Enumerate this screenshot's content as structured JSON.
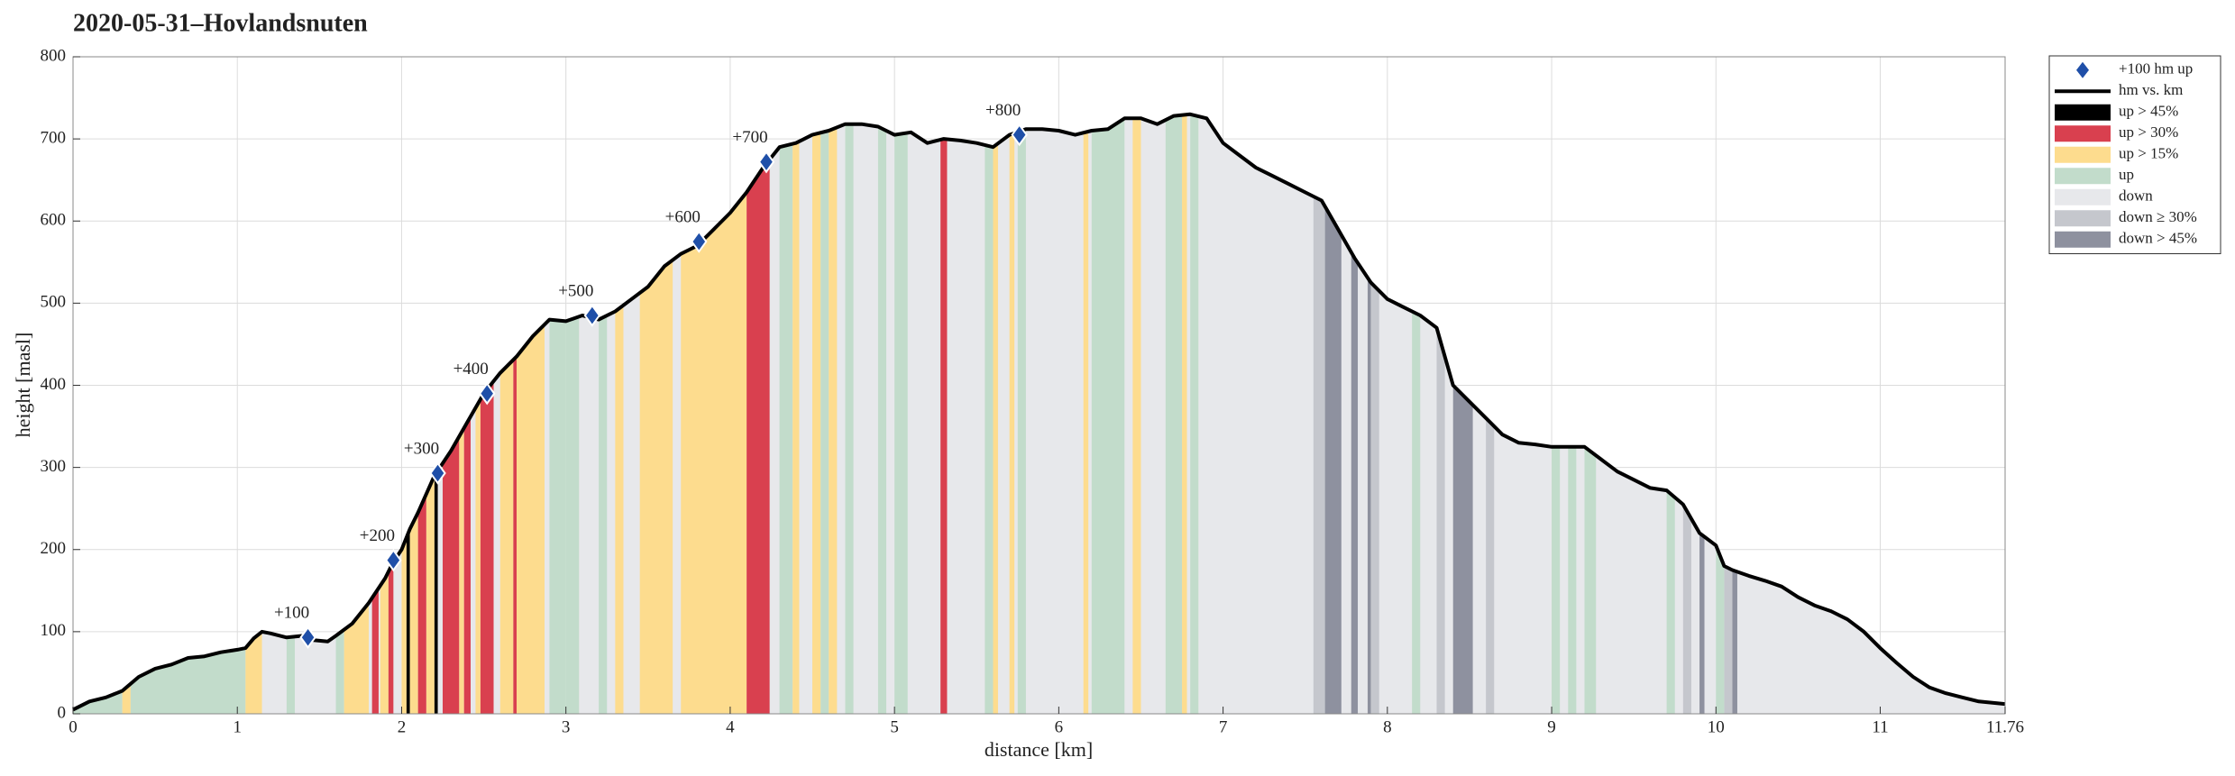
{
  "chart_data": {
    "type": "area",
    "title": "2020-05-31–Hovlandsnuten",
    "xlabel": "distance [km]",
    "ylabel": "height [masl]",
    "xlim": [
      0,
      11.76
    ],
    "ylim": [
      0,
      800
    ],
    "xticks": [
      0,
      1,
      2,
      3,
      4,
      5,
      6,
      7,
      8,
      9,
      10,
      11,
      11.76
    ],
    "yticks": [
      0,
      100,
      200,
      300,
      400,
      500,
      600,
      700,
      800
    ],
    "grid": true,
    "legend": "outside-right",
    "x": [
      0,
      0.1,
      0.2,
      0.3,
      0.4,
      0.5,
      0.6,
      0.7,
      0.8,
      0.9,
      1.0,
      1.05,
      1.1,
      1.15,
      1.2,
      1.3,
      1.4,
      1.45,
      1.55,
      1.6,
      1.7,
      1.8,
      1.9,
      1.95,
      2.0,
      2.05,
      2.1,
      2.2,
      2.3,
      2.4,
      2.5,
      2.6,
      2.7,
      2.8,
      2.9,
      3.0,
      3.1,
      3.2,
      3.3,
      3.4,
      3.5,
      3.6,
      3.7,
      3.8,
      3.9,
      4.0,
      4.1,
      4.2,
      4.3,
      4.4,
      4.5,
      4.6,
      4.7,
      4.8,
      4.9,
      5.0,
      5.1,
      5.2,
      5.3,
      5.4,
      5.5,
      5.6,
      5.7,
      5.8,
      5.9,
      6.0,
      6.1,
      6.2,
      6.3,
      6.4,
      6.5,
      6.6,
      6.7,
      6.8,
      6.9,
      7.0,
      7.1,
      7.2,
      7.3,
      7.4,
      7.5,
      7.6,
      7.7,
      7.8,
      7.9,
      8.0,
      8.1,
      8.2,
      8.3,
      8.4,
      8.5,
      8.6,
      8.7,
      8.8,
      8.9,
      9.0,
      9.1,
      9.2,
      9.3,
      9.4,
      9.5,
      9.6,
      9.7,
      9.8,
      9.9,
      10.0,
      10.05,
      10.1,
      10.2,
      10.3,
      10.4,
      10.5,
      10.6,
      10.7,
      10.8,
      10.9,
      11.0,
      11.1,
      11.2,
      11.3,
      11.4,
      11.5,
      11.6,
      11.76
    ],
    "series": [
      {
        "name": "hm vs. km",
        "color": "#000000",
        "values": [
          5,
          15,
          20,
          28,
          45,
          55,
          60,
          68,
          70,
          75,
          78,
          80,
          92,
          100,
          98,
          93,
          95,
          90,
          88,
          95,
          110,
          135,
          165,
          185,
          200,
          225,
          245,
          290,
          320,
          355,
          390,
          415,
          435,
          460,
          480,
          478,
          485,
          480,
          490,
          505,
          520,
          545,
          560,
          570,
          590,
          610,
          635,
          665,
          690,
          695,
          705,
          710,
          718,
          718,
          715,
          705,
          708,
          695,
          700,
          698,
          695,
          690,
          705,
          712,
          712,
          710,
          705,
          710,
          712,
          725,
          725,
          718,
          728,
          730,
          725,
          695,
          680,
          665,
          655,
          645,
          635,
          625,
          590,
          555,
          525,
          505,
          495,
          485,
          470,
          400,
          380,
          360,
          340,
          330,
          328,
          325,
          325,
          325,
          310,
          295,
          285,
          275,
          272,
          255,
          220,
          205,
          180,
          175,
          168,
          162,
          155,
          142,
          132,
          125,
          115,
          100,
          80,
          62,
          45,
          32,
          25,
          20,
          15,
          12
        ]
      }
    ],
    "markers": {
      "name": "+100 hm up",
      "color": "#1f4fa8",
      "x": [
        1.43,
        1.95,
        2.22,
        2.52,
        3.16,
        3.81,
        4.22,
        5.76
      ],
      "values": [
        93,
        187,
        293,
        390,
        485,
        575,
        672,
        705
      ],
      "labels": [
        "+100",
        "+200",
        "+300",
        "+400",
        "+500",
        "+600",
        "+700",
        "+800"
      ]
    },
    "bands": [
      {
        "name": "up > 45%",
        "color": "#000000",
        "ranges": [
          [
            2.03,
            2.05
          ],
          [
            2.2,
            2.22
          ]
        ]
      },
      {
        "name": "up > 30%",
        "color": "#d9404f",
        "ranges": [
          [
            1.82,
            1.86
          ],
          [
            1.92,
            1.95
          ],
          [
            2.1,
            2.15
          ],
          [
            2.25,
            2.35
          ],
          [
            2.38,
            2.42
          ],
          [
            2.48,
            2.56
          ],
          [
            2.68,
            2.7
          ],
          [
            4.1,
            4.24
          ],
          [
            5.28,
            5.32
          ]
        ]
      },
      {
        "name": "up > 15%",
        "color": "#fddc8e",
        "ranges": [
          [
            0.3,
            0.35
          ],
          [
            1.05,
            1.15
          ],
          [
            1.65,
            1.8
          ],
          [
            1.87,
            1.92
          ],
          [
            2.0,
            2.03
          ],
          [
            2.05,
            2.1
          ],
          [
            2.15,
            2.2
          ],
          [
            2.35,
            2.38
          ],
          [
            2.45,
            2.48
          ],
          [
            2.6,
            2.68
          ],
          [
            2.7,
            2.87
          ],
          [
            3.3,
            3.35
          ],
          [
            3.45,
            3.65
          ],
          [
            3.7,
            4.1
          ],
          [
            4.38,
            4.42
          ],
          [
            4.5,
            4.55
          ],
          [
            4.6,
            4.65
          ],
          [
            5.6,
            5.63
          ],
          [
            5.7,
            5.73
          ],
          [
            6.15,
            6.18
          ],
          [
            6.45,
            6.5
          ],
          [
            6.75,
            6.78
          ]
        ]
      },
      {
        "name": "up",
        "color": "#c2dccb",
        "ranges": [
          [
            0,
            0.3
          ],
          [
            0.35,
            1.05
          ],
          [
            1.3,
            1.35
          ],
          [
            1.6,
            1.65
          ],
          [
            2.9,
            3.0
          ],
          [
            3.0,
            3.08
          ],
          [
            3.2,
            3.25
          ],
          [
            4.3,
            4.38
          ],
          [
            4.55,
            4.6
          ],
          [
            4.7,
            4.75
          ],
          [
            4.9,
            4.95
          ],
          [
            5.0,
            5.08
          ],
          [
            5.55,
            5.6
          ],
          [
            5.75,
            5.8
          ],
          [
            6.2,
            6.4
          ],
          [
            6.65,
            6.75
          ],
          [
            6.8,
            6.85
          ],
          [
            8.15,
            8.2
          ],
          [
            9.0,
            9.05
          ],
          [
            9.1,
            9.15
          ],
          [
            9.2,
            9.27
          ],
          [
            9.7,
            9.75
          ],
          [
            10.0,
            10.05
          ]
        ]
      },
      {
        "name": "down",
        "color": "#e7e8eb"
      },
      {
        "name": "down ≥ 30%",
        "color": "#c5c7cd",
        "ranges": [
          [
            7.55,
            7.62
          ],
          [
            7.9,
            7.95
          ],
          [
            8.3,
            8.35
          ],
          [
            8.6,
            8.65
          ],
          [
            9.8,
            9.85
          ],
          [
            10.05,
            10.1
          ]
        ]
      },
      {
        "name": "down > 45%",
        "color": "#8e919f",
        "ranges": [
          [
            7.62,
            7.72
          ],
          [
            7.78,
            7.82
          ],
          [
            7.88,
            7.9
          ],
          [
            8.4,
            8.52
          ],
          [
            9.9,
            9.93
          ],
          [
            10.1,
            10.13
          ]
        ]
      }
    ]
  }
}
